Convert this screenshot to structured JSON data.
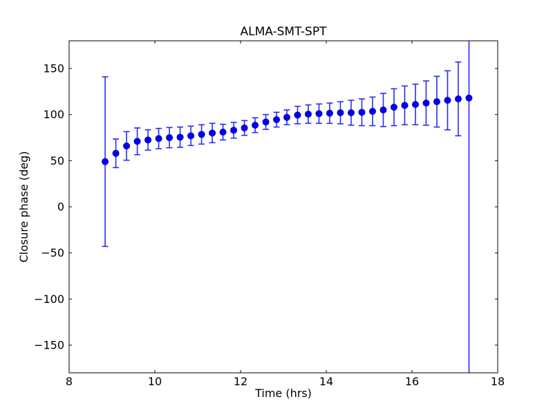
{
  "figure": {
    "background": "#ffffff",
    "axes_color": "#000000"
  },
  "chart_data": {
    "type": "scatter",
    "title": "ALMA-SMT-SPT",
    "xlabel": "Time (hrs)",
    "ylabel": "Closure phase (deg)",
    "xlim": [
      8,
      18
    ],
    "ylim": [
      -180,
      180
    ],
    "xticks": [
      8,
      10,
      12,
      14,
      16,
      18
    ],
    "yticks": [
      -150,
      -100,
      -50,
      0,
      50,
      100,
      150
    ],
    "grid": false,
    "legend": false,
    "marker_color": "#0000ee",
    "marker_edge_color": "#0000b4",
    "errorbar_color": "#2a2af0",
    "series": [
      {
        "name": "closure phase",
        "x": [
          8.84,
          9.09,
          9.34,
          9.59,
          9.84,
          10.09,
          10.34,
          10.59,
          10.84,
          11.09,
          11.34,
          11.59,
          11.84,
          12.09,
          12.34,
          12.59,
          12.84,
          13.08,
          13.33,
          13.58,
          13.83,
          14.08,
          14.33,
          14.58,
          14.83,
          15.08,
          15.33,
          15.58,
          15.83,
          16.08,
          16.33,
          16.58,
          16.83,
          17.08,
          17.33
        ],
        "y": [
          49,
          58,
          66,
          71,
          72.5,
          74,
          75,
          75.5,
          77,
          78.5,
          80,
          81,
          83,
          85.5,
          88.5,
          92,
          94.5,
          97,
          99.5,
          100.5,
          101,
          101.5,
          102,
          102,
          102.5,
          103.5,
          105,
          108,
          110,
          111,
          112.5,
          114,
          115.5,
          117,
          118
        ],
        "yerr": [
          92,
          15.5,
          15.5,
          14.5,
          11,
          11,
          11,
          11,
          10.5,
          10.5,
          10.5,
          8.5,
          8.5,
          8,
          8,
          8,
          8,
          8,
          9.5,
          10,
          10.5,
          11,
          12,
          13.5,
          14.5,
          15.5,
          18,
          20,
          21,
          22,
          24,
          27.5,
          32,
          40,
          320
        ]
      }
    ]
  }
}
